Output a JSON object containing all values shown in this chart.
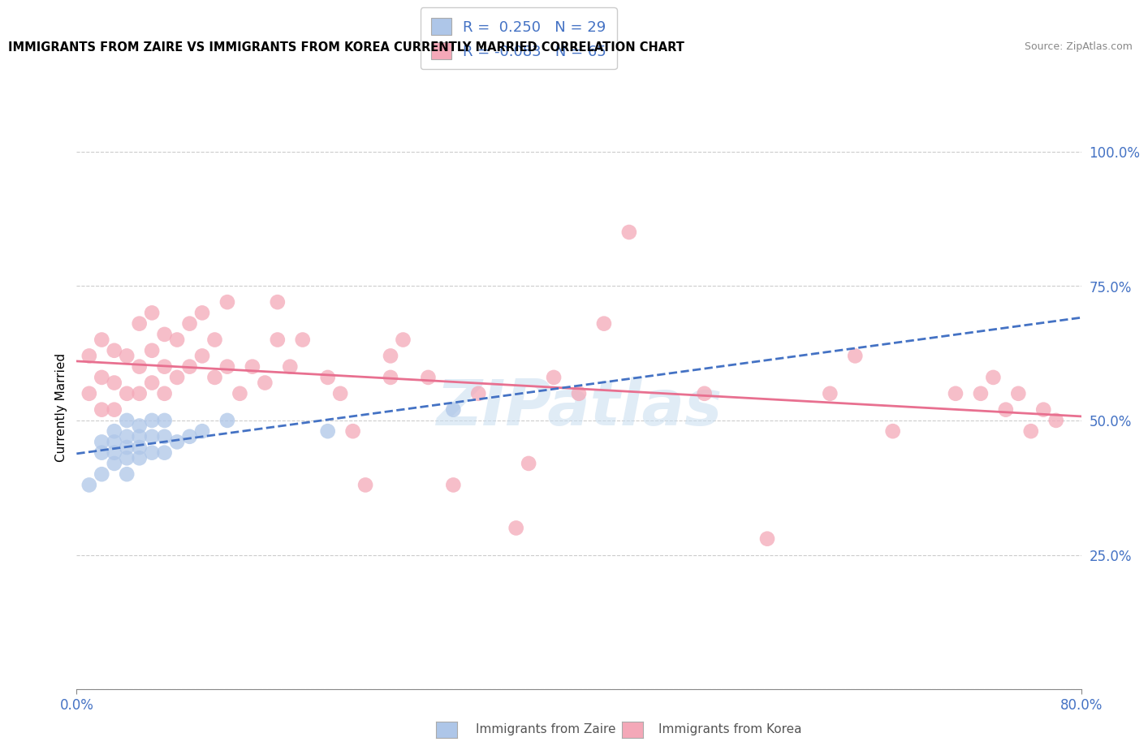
{
  "title": "IMMIGRANTS FROM ZAIRE VS IMMIGRANTS FROM KOREA CURRENTLY MARRIED CORRELATION CHART",
  "source": "Source: ZipAtlas.com",
  "ylabel": "Currently Married",
  "xmin": 0.0,
  "xmax": 0.8,
  "ymin": 0.0,
  "ymax": 1.05,
  "legend_zaire_R": "0.250",
  "legend_zaire_N": "29",
  "legend_korea_R": "-0.083",
  "legend_korea_N": "65",
  "zaire_color": "#aec6e8",
  "korea_color": "#f4a8b8",
  "zaire_line_color": "#4472c4",
  "korea_line_color": "#e87090",
  "ytick_vals": [
    0.0,
    0.25,
    0.5,
    0.75,
    1.0
  ],
  "ytick_labels": [
    "",
    "25.0%",
    "50.0%",
    "75.0%",
    "100.0%"
  ],
  "zaire_x": [
    0.01,
    0.02,
    0.02,
    0.02,
    0.03,
    0.03,
    0.03,
    0.03,
    0.04,
    0.04,
    0.04,
    0.04,
    0.04,
    0.05,
    0.05,
    0.05,
    0.05,
    0.06,
    0.06,
    0.06,
    0.07,
    0.07,
    0.07,
    0.08,
    0.09,
    0.1,
    0.12,
    0.2,
    0.3
  ],
  "zaire_y": [
    0.38,
    0.4,
    0.44,
    0.46,
    0.42,
    0.44,
    0.46,
    0.48,
    0.4,
    0.43,
    0.45,
    0.47,
    0.5,
    0.43,
    0.45,
    0.47,
    0.49,
    0.44,
    0.47,
    0.5,
    0.44,
    0.47,
    0.5,
    0.46,
    0.47,
    0.48,
    0.5,
    0.48,
    0.52
  ],
  "korea_x": [
    0.01,
    0.01,
    0.02,
    0.02,
    0.02,
    0.03,
    0.03,
    0.03,
    0.04,
    0.04,
    0.05,
    0.05,
    0.05,
    0.06,
    0.06,
    0.06,
    0.07,
    0.07,
    0.07,
    0.08,
    0.08,
    0.09,
    0.09,
    0.1,
    0.1,
    0.11,
    0.11,
    0.12,
    0.12,
    0.13,
    0.14,
    0.15,
    0.16,
    0.16,
    0.17,
    0.18,
    0.2,
    0.21,
    0.22,
    0.23,
    0.25,
    0.25,
    0.26,
    0.28,
    0.3,
    0.32,
    0.35,
    0.36,
    0.38,
    0.4,
    0.42,
    0.44,
    0.5,
    0.55,
    0.6,
    0.62,
    0.65,
    0.7,
    0.72,
    0.73,
    0.74,
    0.75,
    0.76,
    0.77,
    0.78
  ],
  "korea_y": [
    0.55,
    0.62,
    0.52,
    0.58,
    0.65,
    0.52,
    0.57,
    0.63,
    0.55,
    0.62,
    0.55,
    0.6,
    0.68,
    0.57,
    0.63,
    0.7,
    0.55,
    0.6,
    0.66,
    0.58,
    0.65,
    0.6,
    0.68,
    0.62,
    0.7,
    0.58,
    0.65,
    0.6,
    0.72,
    0.55,
    0.6,
    0.57,
    0.65,
    0.72,
    0.6,
    0.65,
    0.58,
    0.55,
    0.48,
    0.38,
    0.58,
    0.62,
    0.65,
    0.58,
    0.38,
    0.55,
    0.3,
    0.42,
    0.58,
    0.55,
    0.68,
    0.85,
    0.55,
    0.28,
    0.55,
    0.62,
    0.48,
    0.55,
    0.55,
    0.58,
    0.52,
    0.55,
    0.48,
    0.52,
    0.5
  ]
}
